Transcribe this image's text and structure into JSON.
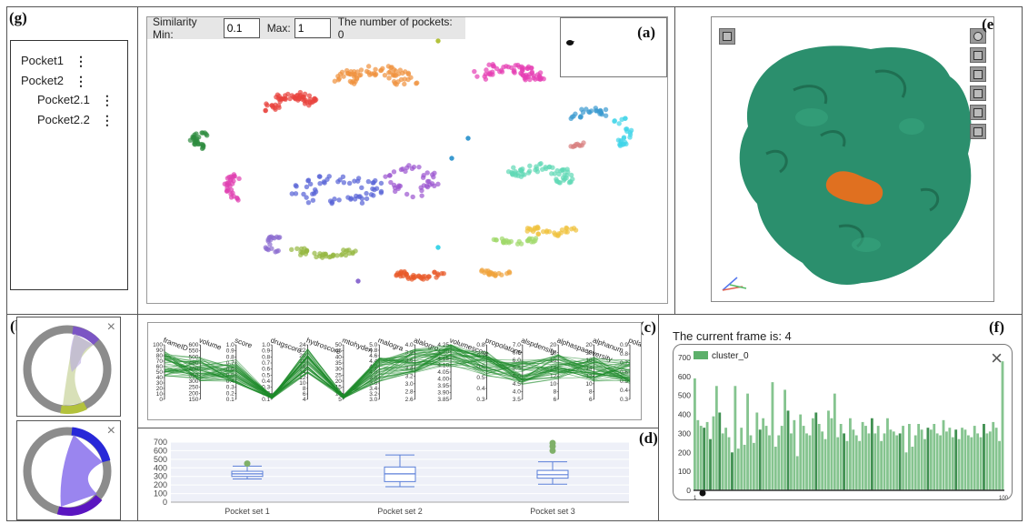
{
  "labels": {
    "a": "(a)",
    "b": "(b)",
    "c": "(c)",
    "d": "(d)",
    "e": "(e)",
    "f": "(f)",
    "g": "(g)"
  },
  "tree": {
    "items": [
      {
        "label": "Pocket1",
        "level": 0
      },
      {
        "label": "Pocket2",
        "level": 0
      },
      {
        "label": "Pocket2.1",
        "level": 1
      },
      {
        "label": "Pocket2.2",
        "level": 1
      }
    ],
    "menu_glyph": "⋮"
  },
  "similarity": {
    "min_label": "Similarity Min:",
    "min_value": "0.1",
    "max_label": "Max:",
    "max_value": "1",
    "count_text": "The number of pockets: 0"
  },
  "scatter": {
    "colors": [
      "#e8413c",
      "#f0923d",
      "#e53fb4",
      "#3a9ad0",
      "#3ed4e8",
      "#2e8b3e",
      "#e040b0",
      "#5561d6",
      "#9b55d0",
      "#5fd9b5",
      "#f0c23c",
      "#9fd86a",
      "#8c6cd0",
      "#95b841",
      "#e85a2a",
      "#f0a23a",
      "#d88080"
    ]
  },
  "parallel": {
    "axes": [
      "frameID",
      "volume",
      "score",
      "drugscore",
      "hydroscore",
      "mtohyden",
      "malogra",
      "alalogro",
      "volumescore",
      "propolatone",
      "alspdensity",
      "alphaspaceversity",
      "alphanum",
      "polarityscore"
    ],
    "tick_labels": [
      [
        "100",
        "90",
        "80",
        "70",
        "60",
        "50",
        "40",
        "30",
        "20",
        "10",
        "0"
      ],
      [
        "600",
        "550",
        "500",
        "450",
        "400",
        "350",
        "300",
        "250",
        "200",
        "150"
      ],
      [
        "1.0",
        "0.9",
        "0.8",
        "0.7",
        "0.6",
        "0.5",
        "0.4",
        "0.3",
        "0.2",
        "0.1"
      ],
      [
        "1.0",
        "0.9",
        "0.8",
        "0.7",
        "0.6",
        "0.5",
        "0.4",
        "0.3",
        "0.2",
        "0.1"
      ],
      [
        "24",
        "22",
        "20",
        "18",
        "16",
        "14",
        "12",
        "10",
        "8",
        "6",
        "4"
      ],
      [
        "50",
        "45",
        "40",
        "35",
        "30",
        "25",
        "20",
        "15",
        "10",
        "5"
      ],
      [
        "5.0",
        "4.8",
        "4.6",
        "4.4",
        "4.2",
        "4.0",
        "3.8",
        "3.6",
        "3.4",
        "3.2",
        "3.0"
      ],
      [
        "4.0",
        "3.8",
        "3.6",
        "3.4",
        "3.2",
        "3.0",
        "2.8",
        "2.6"
      ],
      [
        "4.25",
        "4.20",
        "4.15",
        "4.10",
        "4.05",
        "4.00",
        "3.95",
        "3.90",
        "3.85"
      ],
      [
        "0.8",
        "0.7",
        "0.6",
        "0.5",
        "0.4",
        "0.3"
      ],
      [
        "7.0",
        "6.5",
        "6.0",
        "5.5",
        "5.0",
        "4.5",
        "4.0",
        "3.5"
      ],
      [
        "20",
        "18",
        "16",
        "14",
        "12",
        "10",
        "8",
        "6"
      ],
      [
        "20",
        "18",
        "16",
        "14",
        "12",
        "10",
        "8",
        "6"
      ],
      [
        "0.9",
        "0.8",
        "0.7",
        "0.6",
        "0.5",
        "0.4",
        "0.3"
      ]
    ],
    "line_color": "#1e8a2a"
  },
  "chart_data": [
    {
      "type": "box",
      "categories": [
        "Pocket set 1",
        "Pocket set 2",
        "Pocket set 3"
      ],
      "yticks": [
        0,
        100,
        200,
        300,
        400,
        500,
        600,
        700
      ],
      "ylim": [
        0,
        700
      ],
      "boxes": [
        {
          "min": 270,
          "q1": 300,
          "median": 330,
          "q3": 360,
          "max": 420,
          "outliers": [
            450
          ]
        },
        {
          "min": 180,
          "q1": 240,
          "median": 330,
          "q3": 410,
          "max": 550,
          "outliers": []
        },
        {
          "min": 210,
          "q1": 280,
          "median": 320,
          "q3": 370,
          "max": 470,
          "outliers": [
            600,
            650,
            690
          ]
        }
      ],
      "color": "#5b7fd8"
    },
    {
      "type": "bar",
      "title": "The current frame is: 4",
      "legend": "cluster_0",
      "x_start": "1",
      "x_end": "100",
      "yticks": [
        0,
        100,
        200,
        300,
        400,
        500,
        600,
        700
      ],
      "ylim": [
        0,
        700
      ],
      "values": [
        590,
        370,
        340,
        330,
        360,
        270,
        390,
        550,
        410,
        300,
        330,
        280,
        200,
        550,
        220,
        330,
        240,
        510,
        290,
        250,
        410,
        320,
        380,
        340,
        290,
        570,
        230,
        290,
        340,
        530,
        420,
        300,
        370,
        180,
        400,
        340,
        300,
        290,
        380,
        410,
        350,
        310,
        270,
        420,
        380,
        510,
        280,
        350,
        300,
        260,
        380,
        320,
        290,
        260,
        360,
        340,
        300,
        380,
        300,
        340,
        260,
        300,
        380,
        320,
        310,
        290,
        300,
        340,
        200,
        350,
        230,
        290,
        350,
        320,
        270,
        330,
        320,
        350,
        300,
        290,
        370,
        310,
        330,
        280,
        320,
        270,
        330,
        320,
        290,
        280,
        340,
        300,
        280,
        350,
        300,
        310,
        360,
        330,
        260,
        680
      ],
      "color": "#5cb06a",
      "dark_color": "#1f7d32"
    }
  ],
  "chord1": {
    "ring": "#8c8c8c",
    "seg1": "#7b55c4",
    "seg2": "#b3c23c",
    "ribbon": "#c7d39a"
  },
  "chord2": {
    "ring": "#8c8c8c",
    "seg1": "#2828d8",
    "seg2": "#5a15c0",
    "ribbon": "#8870ec"
  },
  "molecule": {
    "surface": "#2b8f6d",
    "ligand": "#e07020"
  },
  "close_glyph": "×"
}
